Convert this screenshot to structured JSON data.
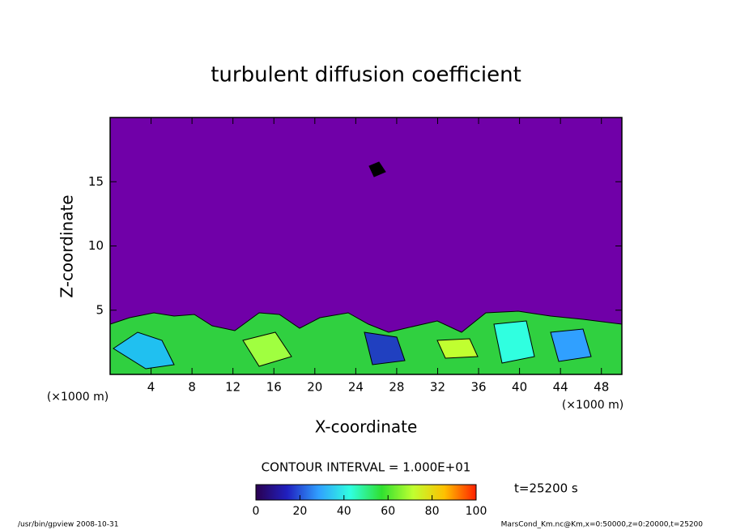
{
  "chart_data": {
    "type": "contour",
    "title": "turbulent diffusion coefficient",
    "xlabel": "X-coordinate",
    "ylabel": "Z-coordinate",
    "xunits": "(×1000 m)",
    "yunits": "(×1000 m)",
    "xlim": [
      0,
      50
    ],
    "xticks": [
      4,
      8,
      12,
      16,
      20,
      24,
      28,
      32,
      36,
      40,
      44,
      48
    ],
    "ylim": [
      0,
      20
    ],
    "yticks": [
      5,
      10,
      15
    ],
    "contour_interval": "CONTOUR INTERVAL = 1.000E+01",
    "time": "t=25200 s",
    "colorbar": {
      "lim": [
        0,
        100
      ],
      "ticks": [
        0,
        20,
        40,
        60,
        80,
        100
      ],
      "colormap": [
        "#2a0050",
        "#2020c0",
        "#30a0ff",
        "#30ffe0",
        "#30e030",
        "#c0ff30",
        "#ffc000",
        "#ff2000"
      ]
    },
    "footer_left": "/usr/bin/gpview  2008-10-31",
    "footer_right": "MarsCond_Km.nc@Km,x=0:50000,z=0:20000,t=25200"
  }
}
